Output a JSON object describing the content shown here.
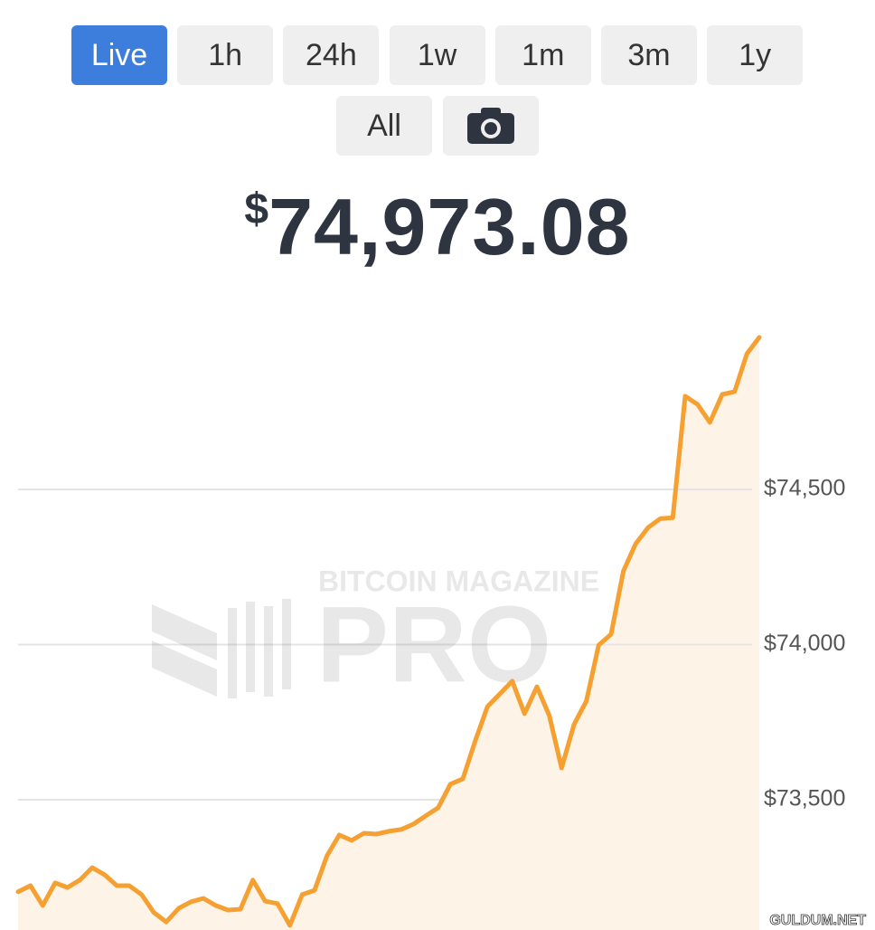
{
  "buttons": [
    "Live",
    "1h",
    "24h",
    "1w",
    "1m",
    "3m",
    "1y",
    "All"
  ],
  "price": {
    "symbol": "$",
    "amount": "74,973.08"
  },
  "watermark": {
    "brand": "BITCOIN MAGAZINE",
    "product": "PRO",
    "site": "GULDUM.NET"
  },
  "chart_data": {
    "type": "area",
    "categories": [
      null,
      null,
      null,
      null,
      null,
      null,
      null,
      null,
      null,
      null,
      null,
      null,
      null,
      null,
      null,
      null,
      null,
      null,
      null,
      null,
      null,
      null,
      null,
      null,
      null,
      null,
      null,
      null,
      null,
      null,
      null,
      null,
      null,
      null,
      null,
      null,
      null,
      null,
      null,
      null,
      null,
      null,
      null,
      null,
      null,
      null,
      null,
      null,
      null,
      null,
      null,
      null,
      null,
      null,
      null,
      null,
      null,
      null,
      null,
      null,
      null
    ],
    "values": [
      73203,
      73223,
      73159,
      73232,
      73217,
      73241,
      73281,
      73258,
      73223,
      73223,
      73194,
      73136,
      73106,
      73150,
      73171,
      73182,
      73159,
      73144,
      73147,
      73241,
      73173,
      73165,
      73095,
      73194,
      73208,
      73319,
      73386,
      73369,
      73392,
      73389,
      73398,
      73404,
      73421,
      73448,
      73474,
      73550,
      73567,
      73689,
      73800,
      73841,
      73882,
      73777,
      73864,
      73771,
      73602,
      73742,
      73818,
      73998,
      74033,
      74237,
      74325,
      74377,
      74406,
      74409,
      74800,
      74774,
      74716,
      74806,
      74815,
      74937,
      74990
    ],
    "color": "#f5a030",
    "fill": "#fdf3e7",
    "ylim": [
      73080,
      75080
    ],
    "yticks": [
      {
        "value": 73500,
        "label": "$73,500"
      },
      {
        "value": 74000,
        "label": "$74,000"
      },
      {
        "value": 74500,
        "label": "$74,500"
      }
    ],
    "grid": true
  }
}
